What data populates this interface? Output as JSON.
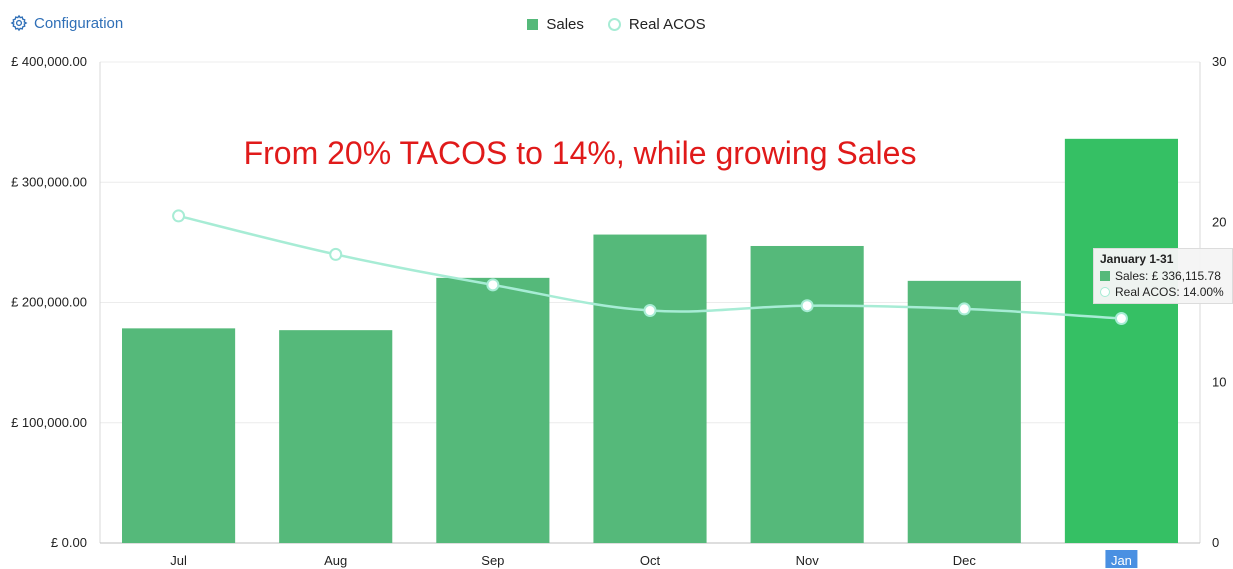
{
  "config": {
    "label": "Configuration",
    "icon": "gear-icon"
  },
  "colors": {
    "bar": "#55b97a",
    "bar_highlight": "#35c064",
    "line": "#a7ecd5",
    "annotation": "#e01a1a",
    "tick_highlight_bg": "#4a90e2"
  },
  "chart_data": {
    "type": "bar",
    "categories": [
      "Jul",
      "Aug",
      "Sep",
      "Oct",
      "Nov",
      "Dec",
      "Jan"
    ],
    "highlighted_category": "Jan",
    "series": [
      {
        "name": "Sales",
        "type": "bar",
        "axis": "left",
        "values": [
          178500,
          177000,
          220500,
          256500,
          247000,
          218000,
          336115.78
        ]
      },
      {
        "name": "Real ACOS",
        "type": "line",
        "axis": "right",
        "values": [
          20.4,
          18.0,
          16.1,
          14.5,
          14.8,
          14.6,
          14.0
        ]
      }
    ],
    "y_left": {
      "min": 0,
      "max": 400000,
      "tick_labels": [
        "£ 0.00",
        "£ 100,000.00",
        "£ 200,000.00",
        "£ 300,000.00",
        "£ 400,000.00"
      ]
    },
    "y_right": {
      "min": 0,
      "max": 30,
      "tick_labels": [
        "0",
        "10",
        "20",
        "30"
      ]
    },
    "legend": {
      "position": "top-center"
    },
    "grid": true,
    "annotation": "From 20% TACOS to 14%, while growing Sales"
  },
  "tooltip": {
    "title": "January 1-31",
    "rows": [
      "Sales: £ 336,115.78",
      "Real ACOS: 14.00%"
    ]
  }
}
